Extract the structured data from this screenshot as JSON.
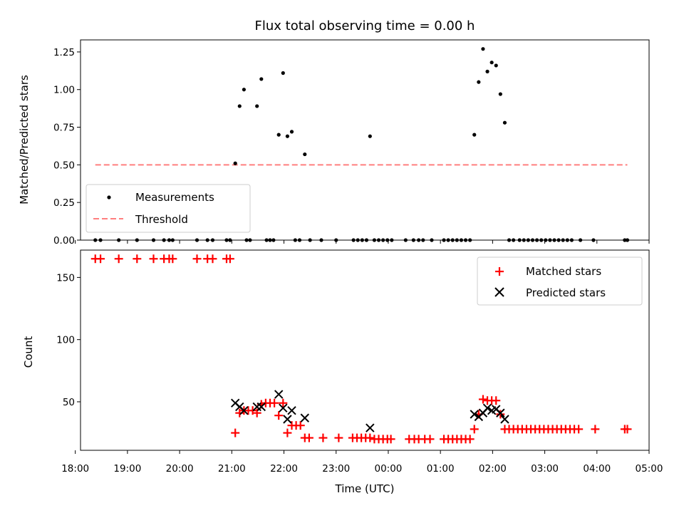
{
  "chart_data": [
    {
      "type": "scatter",
      "title": "Flux total observing time = 0.00 h",
      "xlabel": "",
      "ylabel": "Matched/Predicted stars",
      "xlim": [
        18.1,
        5.0
      ],
      "ylim": [
        0.0,
        1.33
      ],
      "y_ticks": [
        "0.00",
        "0.25",
        "0.50",
        "0.75",
        "1.00",
        "1.25"
      ],
      "y_tick_values": [
        0.0,
        0.25,
        0.5,
        0.75,
        1.0,
        1.25
      ],
      "legend_location": "lower-left",
      "threshold": {
        "name": "Threshold",
        "value": 0.5,
        "x_start": "18:23",
        "x_end": "04:35",
        "color": "#ff7f7f"
      },
      "measurements": {
        "name": "Measurements",
        "color": "#000000",
        "points": [
          [
            "21:04",
            0.51
          ],
          [
            "21:09",
            0.89
          ],
          [
            "21:14",
            1.0
          ],
          [
            "21:29",
            0.89
          ],
          [
            "21:34",
            1.07
          ],
          [
            "21:54",
            0.7
          ],
          [
            "21:59",
            1.11
          ],
          [
            "22:04",
            0.69
          ],
          [
            "22:09",
            0.72
          ],
          [
            "22:24",
            0.57
          ],
          [
            "23:39",
            0.69
          ],
          [
            "01:39",
            0.7
          ],
          [
            "01:44",
            1.05
          ],
          [
            "01:49",
            1.27
          ],
          [
            "01:54",
            1.12
          ],
          [
            "01:59",
            1.18
          ],
          [
            "02:04",
            1.16
          ],
          [
            "02:09",
            0.97
          ],
          [
            "02:14",
            0.78
          ]
        ],
        "zero_points": [
          "18:23",
          "18:29",
          "18:50",
          "19:11",
          "19:30",
          "19:42",
          "19:48",
          "19:52",
          "20:20",
          "20:32",
          "20:38",
          "20:54",
          "20:58",
          "21:17",
          "21:21",
          "21:40",
          "21:44",
          "21:48",
          "22:13",
          "22:18",
          "22:30",
          "22:43",
          "23:00",
          "23:20",
          "23:25",
          "23:30",
          "23:35",
          "23:44",
          "23:49",
          "23:54",
          "23:59",
          "00:04",
          "00:20",
          "00:29",
          "00:35",
          "00:40",
          "00:50",
          "01:04",
          "01:09",
          "01:14",
          "01:19",
          "01:24",
          "01:29",
          "01:34",
          "02:19",
          "02:24",
          "02:31",
          "02:36",
          "02:41",
          "02:46",
          "02:51",
          "02:56",
          "03:01",
          "03:06",
          "03:11",
          "03:16",
          "03:21",
          "03:26",
          "03:31",
          "03:41",
          "03:56",
          "04:32",
          "04:35"
        ]
      }
    },
    {
      "type": "scatter",
      "title": "",
      "xlabel": "Time (UTC)",
      "ylabel": "Count",
      "xlim": [
        18.1,
        5.0
      ],
      "ylim": [
        11,
        172
      ],
      "x_ticks": [
        "18:00",
        "19:00",
        "20:00",
        "21:00",
        "22:00",
        "23:00",
        "00:00",
        "01:00",
        "02:00",
        "03:00",
        "04:00",
        "05:00"
      ],
      "y_ticks": [
        "50",
        "100",
        "150"
      ],
      "y_tick_values": [
        50,
        100,
        150
      ],
      "legend_location": "upper-right",
      "series": [
        {
          "name": "Matched stars",
          "marker": "+",
          "color": "#ff0000",
          "points": [
            [
              "18:23",
              165
            ],
            [
              "18:29",
              165
            ],
            [
              "18:50",
              165
            ],
            [
              "19:11",
              165
            ],
            [
              "19:30",
              165
            ],
            [
              "19:42",
              165
            ],
            [
              "19:48",
              165
            ],
            [
              "19:52",
              165
            ],
            [
              "20:20",
              165
            ],
            [
              "20:32",
              165
            ],
            [
              "20:38",
              165
            ],
            [
              "20:54",
              165
            ],
            [
              "20:58",
              165
            ],
            [
              "21:04",
              25
            ],
            [
              "21:09",
              41
            ],
            [
              "21:14",
              43
            ],
            [
              "21:19",
              43
            ],
            [
              "21:24",
              43
            ],
            [
              "21:29",
              41
            ],
            [
              "21:34",
              48
            ],
            [
              "21:39",
              49
            ],
            [
              "21:44",
              49
            ],
            [
              "21:49",
              49
            ],
            [
              "21:54",
              39
            ],
            [
              "21:59",
              49
            ],
            [
              "22:04",
              25
            ],
            [
              "22:09",
              31
            ],
            [
              "22:14",
              31
            ],
            [
              "22:19",
              31
            ],
            [
              "22:24",
              21
            ],
            [
              "22:29",
              21
            ],
            [
              "22:45",
              21
            ],
            [
              "23:03",
              21
            ],
            [
              "23:19",
              21
            ],
            [
              "23:24",
              21
            ],
            [
              "23:29",
              21
            ],
            [
              "23:34",
              21
            ],
            [
              "23:39",
              21
            ],
            [
              "23:44",
              20
            ],
            [
              "23:49",
              20
            ],
            [
              "23:54",
              20
            ],
            [
              "23:59",
              20
            ],
            [
              "00:03",
              20
            ],
            [
              "00:24",
              20
            ],
            [
              "00:30",
              20
            ],
            [
              "00:35",
              20
            ],
            [
              "00:42",
              20
            ],
            [
              "00:48",
              20
            ],
            [
              "01:04",
              20
            ],
            [
              "01:09",
              20
            ],
            [
              "01:14",
              20
            ],
            [
              "01:19",
              20
            ],
            [
              "01:24",
              20
            ],
            [
              "01:29",
              20
            ],
            [
              "01:34",
              20
            ],
            [
              "01:39",
              28
            ],
            [
              "01:44",
              40
            ],
            [
              "01:49",
              52
            ],
            [
              "01:54",
              51
            ],
            [
              "01:59",
              51
            ],
            [
              "02:04",
              51
            ],
            [
              "02:09",
              40
            ],
            [
              "02:14",
              28
            ],
            [
              "02:19",
              28
            ],
            [
              "02:24",
              28
            ],
            [
              "02:29",
              28
            ],
            [
              "02:34",
              28
            ],
            [
              "02:39",
              28
            ],
            [
              "02:44",
              28
            ],
            [
              "02:49",
              28
            ],
            [
              "02:54",
              28
            ],
            [
              "02:59",
              28
            ],
            [
              "03:04",
              28
            ],
            [
              "03:09",
              28
            ],
            [
              "03:14",
              28
            ],
            [
              "03:19",
              28
            ],
            [
              "03:24",
              28
            ],
            [
              "03:29",
              28
            ],
            [
              "03:34",
              28
            ],
            [
              "03:39",
              28
            ],
            [
              "03:58",
              28
            ],
            [
              "04:32",
              28
            ],
            [
              "04:35",
              28
            ]
          ]
        },
        {
          "name": "Predicted stars",
          "marker": "x",
          "color": "#000000",
          "points": [
            [
              "21:04",
              49
            ],
            [
              "21:09",
              46
            ],
            [
              "21:14",
              43
            ],
            [
              "21:29",
              46
            ],
            [
              "21:34",
              46
            ],
            [
              "21:54",
              56
            ],
            [
              "21:59",
              45
            ],
            [
              "22:04",
              36
            ],
            [
              "22:09",
              43
            ],
            [
              "22:24",
              37
            ],
            [
              "23:39",
              29
            ],
            [
              "01:39",
              40
            ],
            [
              "01:44",
              38
            ],
            [
              "01:49",
              41
            ],
            [
              "01:54",
              45
            ],
            [
              "01:59",
              43
            ],
            [
              "02:04",
              44
            ],
            [
              "02:09",
              41
            ],
            [
              "02:14",
              36
            ]
          ]
        }
      ]
    }
  ]
}
